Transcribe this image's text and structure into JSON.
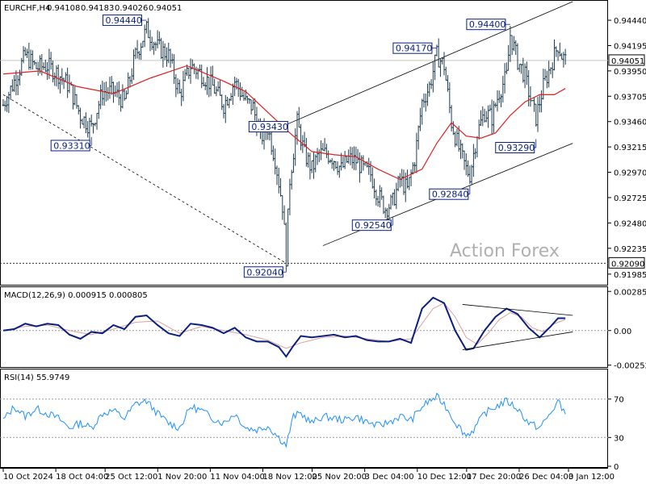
{
  "chart_data": [
    {
      "type": "candlestick",
      "symbol_title": "EURCHF,H4",
      "ohlc": [
        "0.94108",
        "0.94183",
        "0.94026",
        "0.94051"
      ],
      "current_price": "0.94051",
      "ylim": [
        0.9189,
        0.9462
      ],
      "y_ticks": [
        "0.94440",
        "0.94195",
        "0.93950",
        "0.93705",
        "0.93460",
        "0.93215",
        "0.92970",
        "0.92725",
        "0.92480",
        "0.92235",
        "0.91985"
      ],
      "level_line_label": "0.92090",
      "level_line_value": 0.9209,
      "annotations": [
        {
          "label": "0.94440",
          "bar": 39,
          "value": 0.9444
        },
        {
          "label": "0.93310",
          "bar": 24,
          "value": 0.9331
        },
        {
          "label": "0.93430",
          "bar": 77,
          "value": 0.9343
        },
        {
          "label": "0.92040",
          "bar": 77,
          "value": 0.9204
        },
        {
          "label": "0.92540",
          "bar": 106,
          "value": 0.9254
        },
        {
          "label": "0.94170",
          "bar": 118,
          "value": 0.9417
        },
        {
          "label": "0.92840",
          "bar": 127,
          "value": 0.9284
        },
        {
          "label": "0.94400",
          "bar": 138,
          "value": 0.944
        },
        {
          "label": "0.93290",
          "bar": 145,
          "value": 0.9329
        }
      ],
      "watermark": "Action Forex",
      "close_path": [
        [
          0,
          0.9362
        ],
        [
          3,
          0.9385
        ],
        [
          6,
          0.941
        ],
        [
          9,
          0.9398
        ],
        [
          12,
          0.94
        ],
        [
          15,
          0.9392
        ],
        [
          18,
          0.938
        ],
        [
          21,
          0.9352
        ],
        [
          24,
          0.934
        ],
        [
          27,
          0.9375
        ],
        [
          30,
          0.9375
        ],
        [
          33,
          0.9365
        ],
        [
          36,
          0.941
        ],
        [
          39,
          0.9435
        ],
        [
          42,
          0.9418
        ],
        [
          45,
          0.941
        ],
        [
          48,
          0.9372
        ],
        [
          51,
          0.94
        ],
        [
          54,
          0.9392
        ],
        [
          57,
          0.938
        ],
        [
          60,
          0.9362
        ],
        [
          63,
          0.9385
        ],
        [
          66,
          0.9365
        ],
        [
          68,
          0.936
        ],
        [
          70,
          0.933
        ],
        [
          72,
          0.934
        ],
        [
          74,
          0.931
        ],
        [
          76,
          0.9265
        ],
        [
          77,
          0.9215
        ],
        [
          78,
          0.929
        ],
        [
          80,
          0.9345
        ],
        [
          82,
          0.9315
        ],
        [
          84,
          0.93
        ],
        [
          86,
          0.9315
        ],
        [
          88,
          0.9315
        ],
        [
          90,
          0.931
        ],
        [
          92,
          0.93
        ],
        [
          94,
          0.931
        ],
        [
          96,
          0.9308
        ],
        [
          98,
          0.93
        ],
        [
          100,
          0.9295
        ],
        [
          102,
          0.9275
        ],
        [
          104,
          0.9262
        ],
        [
          106,
          0.9268
        ],
        [
          108,
          0.929
        ],
        [
          110,
          0.928
        ],
        [
          112,
          0.931
        ],
        [
          114,
          0.9365
        ],
        [
          116,
          0.938
        ],
        [
          118,
          0.941
        ],
        [
          120,
          0.94
        ],
        [
          122,
          0.9345
        ],
        [
          124,
          0.932
        ],
        [
          126,
          0.93
        ],
        [
          127,
          0.9295
        ],
        [
          129,
          0.9335
        ],
        [
          131,
          0.9355
        ],
        [
          133,
          0.935
        ],
        [
          135,
          0.9375
        ],
        [
          137,
          0.939
        ],
        [
          138,
          0.943
        ],
        [
          140,
          0.9405
        ],
        [
          142,
          0.939
        ],
        [
          144,
          0.936
        ],
        [
          145,
          0.935
        ],
        [
          147,
          0.938
        ],
        [
          149,
          0.94
        ],
        [
          151,
          0.942
        ],
        [
          152,
          0.941
        ],
        [
          153,
          0.9405
        ]
      ],
      "ma_path": [
        [
          0,
          0.9392
        ],
        [
          10,
          0.9395
        ],
        [
          20,
          0.938
        ],
        [
          30,
          0.9373
        ],
        [
          40,
          0.9388
        ],
        [
          50,
          0.94
        ],
        [
          60,
          0.9385
        ],
        [
          66,
          0.9375
        ],
        [
          72,
          0.9355
        ],
        [
          78,
          0.9335
        ],
        [
          84,
          0.9317
        ],
        [
          90,
          0.9314
        ],
        [
          96,
          0.9312
        ],
        [
          102,
          0.93
        ],
        [
          108,
          0.929
        ],
        [
          114,
          0.93
        ],
        [
          118,
          0.9325
        ],
        [
          122,
          0.9345
        ],
        [
          126,
          0.9332
        ],
        [
          130,
          0.933
        ],
        [
          134,
          0.9335
        ],
        [
          138,
          0.9352
        ],
        [
          142,
          0.9365
        ],
        [
          146,
          0.9372
        ],
        [
          150,
          0.9372
        ],
        [
          153,
          0.9378
        ]
      ],
      "trend_lines": [
        {
          "kind": "dotted",
          "from": [
            0,
            0.9372
          ],
          "to": [
            77,
            0.9209
          ]
        },
        {
          "kind": "solid",
          "from": [
            77,
            0.9343
          ],
          "to": [
            155,
            0.9462
          ]
        },
        {
          "kind": "solid",
          "from": [
            87,
            0.9226
          ],
          "to": [
            155,
            0.9325
          ]
        }
      ],
      "x_tick_labels": [
        "10 Oct 2024",
        "18 Oct 04:00",
        "25 Oct 12:00",
        "1 Nov 20:00",
        "11 Nov 04:00",
        "18 Nov 12:00",
        "25 Nov 20:00",
        "3 Dec 04:00",
        "10 Dec 12:00",
        "17 Dec 20:00",
        "26 Dec 04:00",
        "3 Jan 12:00"
      ],
      "x_tick_bars": [
        0,
        16,
        31,
        47,
        63,
        79,
        94,
        110,
        126,
        141,
        157,
        172
      ]
    },
    {
      "type": "line",
      "title": "MACD(12,26,9) 0.000915 0.000805",
      "ylim": [
        -0.0026,
        0.0031
      ],
      "y_ticks": [
        "0.00285",
        "0.00",
        "-0.00252"
      ],
      "current_label": "0.00",
      "series": [
        {
          "name": "MACD",
          "color": "#0a1f80",
          "points": [
            [
              0,
              0.0
            ],
            [
              3,
              0.0001
            ],
            [
              6,
              0.0005
            ],
            [
              9,
              0.0003
            ],
            [
              12,
              0.0005
            ],
            [
              15,
              0.0004
            ],
            [
              18,
              -0.0003
            ],
            [
              21,
              -0.0006
            ],
            [
              24,
              -0.0001
            ],
            [
              27,
              -0.0002
            ],
            [
              30,
              0.0004
            ],
            [
              33,
              0.0001
            ],
            [
              36,
              0.001
            ],
            [
              39,
              0.0011
            ],
            [
              42,
              0.0004
            ],
            [
              45,
              -0.0002
            ],
            [
              48,
              -0.0004
            ],
            [
              51,
              0.0005
            ],
            [
              54,
              0.0004
            ],
            [
              57,
              0.0002
            ],
            [
              60,
              -0.0002
            ],
            [
              63,
              0.0002
            ],
            [
              66,
              -0.0005
            ],
            [
              69,
              -0.0008
            ],
            [
              72,
              -0.0008
            ],
            [
              75,
              -0.0012
            ],
            [
              77,
              -0.0019
            ],
            [
              79,
              -0.0011
            ],
            [
              81,
              -0.0004
            ],
            [
              84,
              -0.0005
            ],
            [
              87,
              -0.0004
            ],
            [
              90,
              -0.0003
            ],
            [
              93,
              -0.0005
            ],
            [
              96,
              -0.0004
            ],
            [
              99,
              -0.0007
            ],
            [
              102,
              -0.0008
            ],
            [
              105,
              -0.0008
            ],
            [
              108,
              -0.0006
            ],
            [
              111,
              -0.0009
            ],
            [
              114,
              0.0016
            ],
            [
              117,
              0.0024
            ],
            [
              120,
              0.002
            ],
            [
              123,
              0.0
            ],
            [
              126,
              -0.0014
            ],
            [
              128,
              -0.0013
            ],
            [
              131,
              0.0
            ],
            [
              134,
              0.001
            ],
            [
              137,
              0.0016
            ],
            [
              140,
              0.0012
            ],
            [
              143,
              0.0002
            ],
            [
              146,
              -0.0005
            ],
            [
              149,
              0.0003
            ],
            [
              151,
              0.0009
            ],
            [
              153,
              0.0009
            ]
          ]
        },
        {
          "name": "Signal",
          "color": "#d9a0a0",
          "points": [
            [
              0,
              0.0
            ],
            [
              6,
              0.0003
            ],
            [
              12,
              0.0004
            ],
            [
              18,
              0.0
            ],
            [
              24,
              -0.0003
            ],
            [
              30,
              0.0001
            ],
            [
              36,
              0.0006
            ],
            [
              42,
              0.0007
            ],
            [
              48,
              -0.0002
            ],
            [
              54,
              0.0003
            ],
            [
              60,
              0.0
            ],
            [
              66,
              -0.0003
            ],
            [
              72,
              -0.0007
            ],
            [
              77,
              -0.0013
            ],
            [
              81,
              -0.0009
            ],
            [
              87,
              -0.0005
            ],
            [
              93,
              -0.0004
            ],
            [
              99,
              -0.0006
            ],
            [
              105,
              -0.0008
            ],
            [
              111,
              -0.0006
            ],
            [
              114,
              0.0005
            ],
            [
              117,
              0.0016
            ],
            [
              120,
              0.002
            ],
            [
              123,
              0.001
            ],
            [
              126,
              -0.0005
            ],
            [
              129,
              -0.001
            ],
            [
              132,
              -0.0002
            ],
            [
              135,
              0.0008
            ],
            [
              138,
              0.0013
            ],
            [
              141,
              0.001
            ],
            [
              144,
              0.0002
            ],
            [
              147,
              -0.0001
            ],
            [
              150,
              0.0005
            ],
            [
              153,
              0.0008
            ]
          ]
        }
      ],
      "trend_lines": [
        {
          "from": [
            125,
            0.0019
          ],
          "to": [
            155,
            0.0011
          ]
        },
        {
          "from": [
            125,
            -0.0014
          ],
          "to": [
            155,
            -0.0001
          ]
        }
      ]
    },
    {
      "type": "line",
      "title": "RSI(14) 55.9749",
      "ylim": [
        0,
        100
      ],
      "y_ticks": [
        "70",
        "30",
        "0"
      ],
      "levels": [
        70,
        30
      ],
      "series": [
        {
          "name": "RSI",
          "color": "#1e90ff",
          "points": [
            [
              0,
              48
            ],
            [
              3,
              62
            ],
            [
              6,
              52
            ],
            [
              9,
              60
            ],
            [
              12,
              55
            ],
            [
              15,
              50
            ],
            [
              18,
              40
            ],
            [
              21,
              45
            ],
            [
              24,
              40
            ],
            [
              27,
              55
            ],
            [
              30,
              58
            ],
            [
              33,
              50
            ],
            [
              36,
              65
            ],
            [
              39,
              68
            ],
            [
              42,
              55
            ],
            [
              45,
              45
            ],
            [
              48,
              40
            ],
            [
              51,
              62
            ],
            [
              54,
              58
            ],
            [
              57,
              50
            ],
            [
              60,
              45
            ],
            [
              63,
              55
            ],
            [
              66,
              40
            ],
            [
              69,
              38
            ],
            [
              72,
              42
            ],
            [
              75,
              30
            ],
            [
              77,
              22
            ],
            [
              79,
              52
            ],
            [
              81,
              55
            ],
            [
              84,
              45
            ],
            [
              87,
              52
            ],
            [
              90,
              50
            ],
            [
              93,
              48
            ],
            [
              96,
              52
            ],
            [
              99,
              46
            ],
            [
              102,
              42
            ],
            [
              105,
              46
            ],
            [
              108,
              52
            ],
            [
              111,
              48
            ],
            [
              114,
              62
            ],
            [
              116,
              68
            ],
            [
              118,
              72
            ],
            [
              120,
              65
            ],
            [
              123,
              46
            ],
            [
              126,
              32
            ],
            [
              128,
              38
            ],
            [
              131,
              55
            ],
            [
              134,
              62
            ],
            [
              137,
              68
            ],
            [
              140,
              60
            ],
            [
              143,
              45
            ],
            [
              146,
              40
            ],
            [
              149,
              55
            ],
            [
              151,
              68
            ],
            [
              152,
              60
            ],
            [
              153,
              56
            ]
          ]
        }
      ]
    }
  ]
}
